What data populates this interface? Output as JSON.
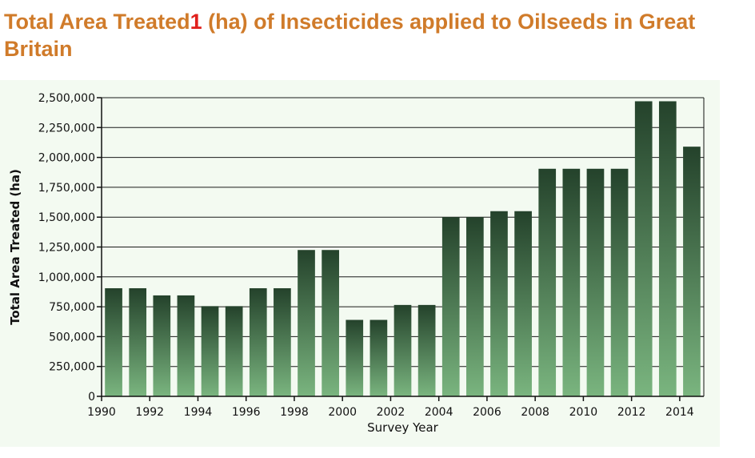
{
  "heading": {
    "part1": "Total Area Treated",
    "superscript": "1",
    "part2": " (ha) of Insecticides applied to Oilseeds in Great Britain"
  },
  "chart_data": {
    "type": "bar",
    "xlabel": "Survey Year",
    "ylabel": "Total Area Treated (ha)",
    "ylim": [
      0,
      2500000
    ],
    "y_ticks": [
      0,
      250000,
      500000,
      750000,
      1000000,
      1250000,
      1500000,
      1750000,
      2000000,
      2250000,
      2500000
    ],
    "y_tick_labels": [
      "0",
      "250,000",
      "500,000",
      "750,000",
      "1,000,000",
      "1,250,000",
      "1,500,000",
      "1,750,000",
      "2,000,000",
      "2,250,000",
      "2,500,000"
    ],
    "categories": [
      "1990",
      "1991",
      "1992",
      "1993",
      "1994",
      "1995",
      "1996",
      "1997",
      "1998",
      "1999",
      "2000",
      "2001",
      "2002",
      "2003",
      "2004",
      "2005",
      "2006",
      "2007",
      "2008",
      "2009",
      "2010",
      "2011",
      "2012",
      "2013",
      "2014"
    ],
    "x_tick_labels": [
      "1990",
      "1992",
      "1994",
      "1996",
      "1998",
      "2000",
      "2002",
      "2004",
      "2006",
      "2008",
      "2010",
      "2012",
      "2014"
    ],
    "values": [
      905000,
      905000,
      845000,
      845000,
      755000,
      755000,
      905000,
      905000,
      1225000,
      1225000,
      640000,
      640000,
      765000,
      765000,
      1500000,
      1500000,
      1550000,
      1550000,
      1905000,
      1905000,
      1905000,
      1905000,
      2470000,
      2470000,
      2090000
    ],
    "grid": "horizontal",
    "colors": {
      "plot_background": "#f3faf1",
      "bar_top": "#24422b",
      "bar_bottom": "#7ab57f",
      "grid": "#1a1a1a"
    }
  }
}
